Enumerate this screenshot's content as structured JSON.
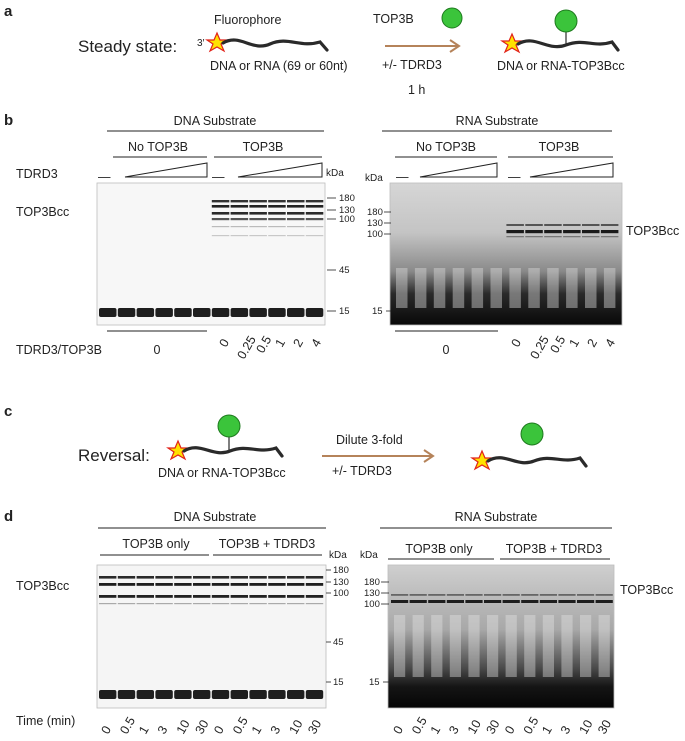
{
  "panel_a": {
    "label": "a",
    "title": "Steady state:",
    "fluorophore": "Fluorophore",
    "three_prime": "3′",
    "substrate": "DNA or RNA (69 or 60nt)",
    "enzyme": "TOP3B",
    "condition": "+/- TDRD3",
    "time": "1 h",
    "product": "DNA or RNA-TOP3Bcc"
  },
  "panel_b": {
    "label": "b",
    "dna_title": "DNA Substrate",
    "rna_title": "RNA Substrate",
    "no_top3b": "No TOP3B",
    "top3b": "TOP3B",
    "tdrd3": "TDRD3",
    "dash": "—",
    "kda": "kDa",
    "band_label": "TOP3Bcc",
    "dna_markers": [
      "180",
      "130",
      "100",
      "45",
      "15"
    ],
    "rna_markers": [
      "180",
      "130",
      "100",
      "15"
    ],
    "ratio_label": "TDRD3/TOP3B",
    "zero": "0",
    "ratios": [
      "0",
      "0.25",
      "0.5",
      "1",
      "2",
      "4"
    ]
  },
  "panel_c": {
    "label": "c",
    "title": "Reversal:",
    "substrate": "DNA or RNA-TOP3Bcc",
    "dilute": "Dilute 3-fold",
    "condition": "+/- TDRD3"
  },
  "panel_d": {
    "label": "d",
    "dna_title": "DNA Substrate",
    "rna_title": "RNA Substrate",
    "top3b_only": "TOP3B only",
    "top3b_tdrd3": "TOP3B + TDRD3",
    "kda": "kDa",
    "band_label": "TOP3Bcc",
    "dna_markers": [
      "180",
      "130",
      "100",
      "45",
      "15"
    ],
    "rna_markers": [
      "180",
      "130",
      "100",
      "15"
    ],
    "time_label": "Time (min)",
    "times": [
      "0",
      "0.5",
      "1",
      "3",
      "10",
      "30",
      "0",
      "0.5",
      "1",
      "3",
      "10",
      "30"
    ]
  }
}
